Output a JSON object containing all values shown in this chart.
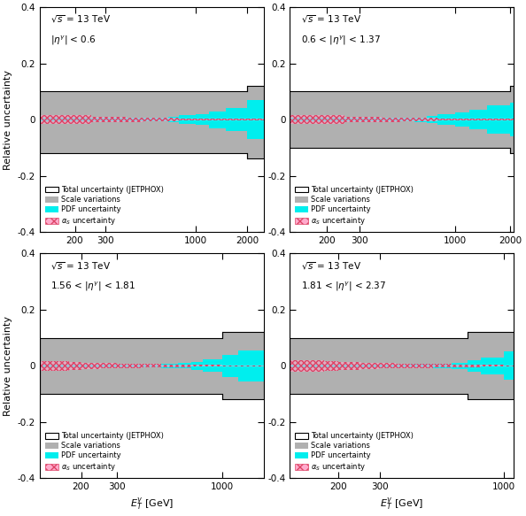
{
  "panels": [
    {
      "label_line1": "$\\sqrt{s}$ = 13 TeV",
      "label_line2": "$|\\eta^{\\gamma}|$ < 0.6",
      "xmin": 125,
      "xmax": 2500,
      "bins": [
        125,
        150,
        175,
        200,
        250,
        300,
        350,
        400,
        500,
        600,
        700,
        800,
        1000,
        1200,
        1500,
        2000,
        2500
      ],
      "scale_up": [
        0.1,
        0.1,
        0.1,
        0.1,
        0.1,
        0.1,
        0.1,
        0.1,
        0.1,
        0.1,
        0.1,
        0.1,
        0.1,
        0.1,
        0.1,
        0.12,
        0.12
      ],
      "scale_dn": [
        -0.12,
        -0.12,
        -0.12,
        -0.12,
        -0.12,
        -0.12,
        -0.12,
        -0.12,
        -0.12,
        -0.12,
        -0.12,
        -0.12,
        -0.12,
        -0.12,
        -0.12,
        -0.14,
        -0.14
      ],
      "total_up": [
        0.1,
        0.1,
        0.1,
        0.1,
        0.1,
        0.1,
        0.1,
        0.1,
        0.1,
        0.1,
        0.1,
        0.1,
        0.1,
        0.1,
        0.1,
        0.12,
        0.12
      ],
      "total_dn": [
        -0.12,
        -0.12,
        -0.12,
        -0.12,
        -0.12,
        -0.12,
        -0.12,
        -0.12,
        -0.12,
        -0.12,
        -0.12,
        -0.12,
        -0.12,
        -0.12,
        -0.12,
        -0.14,
        -0.14
      ],
      "pdf_up": [
        0.005,
        0.005,
        0.005,
        0.005,
        0.005,
        0.005,
        0.005,
        0.005,
        0.005,
        0.005,
        0.01,
        0.015,
        0.02,
        0.03,
        0.04,
        0.07,
        0.085
      ],
      "pdf_dn": [
        -0.005,
        -0.005,
        -0.005,
        -0.005,
        -0.005,
        -0.005,
        -0.005,
        -0.005,
        -0.005,
        -0.005,
        -0.01,
        -0.015,
        -0.02,
        -0.03,
        -0.04,
        -0.07,
        -0.085
      ],
      "alphas_up": [
        0.015,
        0.015,
        0.015,
        0.015,
        0.01,
        0.01,
        0.01,
        0.008,
        0.007,
        0.006,
        0.005,
        0.004,
        0.003,
        0.003,
        0.002,
        0.002,
        0.002
      ],
      "alphas_dn": [
        -0.015,
        -0.015,
        -0.015,
        -0.015,
        -0.01,
        -0.01,
        -0.01,
        -0.008,
        -0.007,
        -0.006,
        -0.005,
        -0.004,
        -0.003,
        -0.003,
        -0.002,
        -0.002,
        -0.002
      ],
      "xticks": [
        200,
        300,
        1000,
        2000
      ]
    },
    {
      "label_line1": "$\\sqrt{s}$ = 13 TeV",
      "label_line2": "0.6 < $|\\eta^{\\gamma}|$ < 1.37",
      "xmin": 125,
      "xmax": 2100,
      "bins": [
        125,
        150,
        175,
        200,
        250,
        300,
        350,
        400,
        500,
        600,
        700,
        800,
        1000,
        1200,
        1500,
        2000,
        2100
      ],
      "scale_up": [
        0.1,
        0.1,
        0.1,
        0.1,
        0.1,
        0.1,
        0.1,
        0.1,
        0.1,
        0.1,
        0.1,
        0.1,
        0.1,
        0.1,
        0.1,
        0.12,
        0.12
      ],
      "scale_dn": [
        -0.1,
        -0.1,
        -0.1,
        -0.1,
        -0.1,
        -0.1,
        -0.1,
        -0.1,
        -0.1,
        -0.1,
        -0.1,
        -0.1,
        -0.1,
        -0.1,
        -0.1,
        -0.12,
        -0.12
      ],
      "total_up": [
        0.1,
        0.1,
        0.1,
        0.1,
        0.1,
        0.1,
        0.1,
        0.1,
        0.1,
        0.1,
        0.1,
        0.1,
        0.1,
        0.1,
        0.1,
        0.12,
        0.12
      ],
      "total_dn": [
        -0.1,
        -0.1,
        -0.1,
        -0.1,
        -0.1,
        -0.1,
        -0.1,
        -0.1,
        -0.1,
        -0.1,
        -0.1,
        -0.1,
        -0.1,
        -0.1,
        -0.1,
        -0.12,
        -0.12
      ],
      "pdf_up": [
        0.005,
        0.005,
        0.005,
        0.005,
        0.005,
        0.005,
        0.005,
        0.005,
        0.005,
        0.008,
        0.012,
        0.018,
        0.025,
        0.035,
        0.05,
        0.06,
        0.06
      ],
      "pdf_dn": [
        -0.005,
        -0.005,
        -0.005,
        -0.005,
        -0.005,
        -0.005,
        -0.005,
        -0.005,
        -0.005,
        -0.008,
        -0.012,
        -0.018,
        -0.025,
        -0.035,
        -0.05,
        -0.06,
        -0.06
      ],
      "alphas_up": [
        0.015,
        0.015,
        0.015,
        0.015,
        0.01,
        0.01,
        0.01,
        0.008,
        0.007,
        0.006,
        0.005,
        0.004,
        0.003,
        0.003,
        0.002,
        0.002,
        0.002
      ],
      "alphas_dn": [
        -0.015,
        -0.015,
        -0.015,
        -0.015,
        -0.01,
        -0.01,
        -0.01,
        -0.008,
        -0.007,
        -0.006,
        -0.005,
        -0.004,
        -0.003,
        -0.003,
        -0.002,
        -0.002,
        -0.002
      ],
      "xticks": [
        200,
        300,
        1000,
        2000
      ]
    },
    {
      "label_line1": "$\\sqrt{s}$ = 13 TeV",
      "label_line2": "1.56 < $|\\eta^{\\gamma}|$ < 1.81",
      "xmin": 125,
      "xmax": 1600,
      "bins": [
        125,
        150,
        175,
        200,
        250,
        300,
        350,
        400,
        500,
        600,
        700,
        800,
        1000,
        1200,
        1600
      ],
      "scale_up": [
        0.1,
        0.1,
        0.1,
        0.1,
        0.1,
        0.1,
        0.1,
        0.1,
        0.1,
        0.1,
        0.1,
        0.1,
        0.12,
        0.12,
        0.12
      ],
      "scale_dn": [
        -0.1,
        -0.1,
        -0.1,
        -0.1,
        -0.1,
        -0.1,
        -0.1,
        -0.1,
        -0.1,
        -0.1,
        -0.1,
        -0.1,
        -0.12,
        -0.12,
        -0.12
      ],
      "total_up": [
        0.1,
        0.1,
        0.1,
        0.1,
        0.1,
        0.1,
        0.1,
        0.1,
        0.1,
        0.1,
        0.1,
        0.1,
        0.12,
        0.12,
        0.12
      ],
      "total_dn": [
        -0.1,
        -0.1,
        -0.1,
        -0.1,
        -0.1,
        -0.1,
        -0.1,
        -0.1,
        -0.1,
        -0.1,
        -0.1,
        -0.1,
        -0.12,
        -0.12,
        -0.12
      ],
      "pdf_up": [
        0.005,
        0.005,
        0.005,
        0.005,
        0.005,
        0.005,
        0.005,
        0.005,
        0.007,
        0.01,
        0.015,
        0.022,
        0.04,
        0.055,
        0.06
      ],
      "pdf_dn": [
        -0.005,
        -0.005,
        -0.005,
        -0.005,
        -0.005,
        -0.005,
        -0.005,
        -0.005,
        -0.007,
        -0.01,
        -0.015,
        -0.022,
        -0.04,
        -0.055,
        -0.06
      ],
      "alphas_up": [
        0.018,
        0.018,
        0.015,
        0.012,
        0.01,
        0.008,
        0.007,
        0.006,
        0.005,
        0.004,
        0.003,
        0.003,
        0.002,
        0.002,
        0.002
      ],
      "alphas_dn": [
        -0.018,
        -0.018,
        -0.015,
        -0.012,
        -0.01,
        -0.008,
        -0.007,
        -0.006,
        -0.005,
        -0.004,
        -0.003,
        -0.003,
        -0.002,
        -0.002,
        -0.002
      ],
      "xticks": [
        200,
        300,
        1000
      ]
    },
    {
      "label_line1": "$\\sqrt{s}$ = 13 TeV",
      "label_line2": "1.81 < $|\\eta^{\\gamma}|$ < 2.37",
      "xmin": 125,
      "xmax": 1100,
      "bins": [
        125,
        150,
        175,
        200,
        250,
        300,
        350,
        400,
        500,
        600,
        700,
        800,
        1000,
        1100
      ],
      "scale_up": [
        0.1,
        0.1,
        0.1,
        0.1,
        0.1,
        0.1,
        0.1,
        0.1,
        0.1,
        0.1,
        0.12,
        0.12,
        0.12,
        0.12
      ],
      "scale_dn": [
        -0.1,
        -0.1,
        -0.1,
        -0.1,
        -0.1,
        -0.1,
        -0.1,
        -0.1,
        -0.1,
        -0.1,
        -0.12,
        -0.12,
        -0.12,
        -0.12
      ],
      "total_up": [
        0.1,
        0.1,
        0.1,
        0.1,
        0.1,
        0.1,
        0.1,
        0.1,
        0.1,
        0.1,
        0.12,
        0.12,
        0.12,
        0.12
      ],
      "total_dn": [
        -0.1,
        -0.1,
        -0.1,
        -0.1,
        -0.1,
        -0.1,
        -0.1,
        -0.1,
        -0.1,
        -0.1,
        -0.12,
        -0.12,
        -0.12,
        -0.12
      ],
      "pdf_up": [
        0.005,
        0.005,
        0.005,
        0.005,
        0.005,
        0.005,
        0.005,
        0.006,
        0.008,
        0.012,
        0.02,
        0.03,
        0.05,
        0.055
      ],
      "pdf_dn": [
        -0.005,
        -0.005,
        -0.005,
        -0.005,
        -0.005,
        -0.005,
        -0.005,
        -0.006,
        -0.008,
        -0.012,
        -0.02,
        -0.03,
        -0.05,
        -0.055
      ],
      "alphas_up": [
        0.02,
        0.02,
        0.018,
        0.015,
        0.012,
        0.01,
        0.008,
        0.007,
        0.006,
        0.005,
        0.004,
        0.003,
        0.002,
        0.002
      ],
      "alphas_dn": [
        -0.02,
        -0.02,
        -0.018,
        -0.015,
        -0.012,
        -0.01,
        -0.008,
        -0.007,
        -0.006,
        -0.005,
        -0.004,
        -0.003,
        -0.002,
        -0.002
      ],
      "xticks": [
        200,
        300,
        1000
      ]
    }
  ],
  "scale_color": "#b0b0b0",
  "pdf_color": "#00eeee",
  "alphas_hatch_color": "#dd4466",
  "alphas_face_color": "#ffaacc",
  "total_edge_color": "#000000",
  "ylabel": "Relative uncertainty",
  "xlabel": "$E_T^{\\gamma}$ [GeV]",
  "ylim": [
    -0.4,
    0.4
  ],
  "yticks": [
    -0.4,
    -0.2,
    0.0,
    0.2,
    0.4
  ],
  "legend_fontsize": 6.0,
  "label_fontsize": 7.5,
  "axis_fontsize": 8.0
}
